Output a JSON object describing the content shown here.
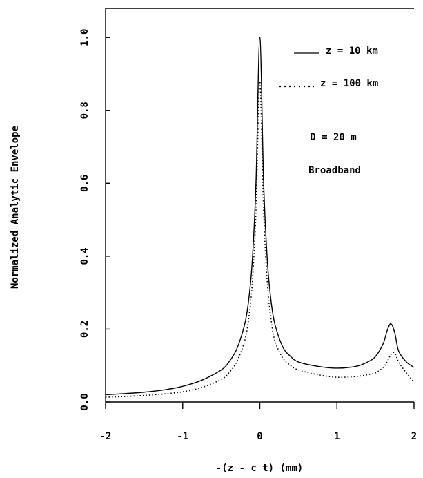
{
  "chart_data": {
    "type": "line",
    "title": "",
    "xlabel": "-(z - c t) (mm)",
    "ylabel": "Normalized Analytic Envelope",
    "xlim": [
      -2,
      2
    ],
    "ylim": [
      0,
      1.08
    ],
    "xticks": [
      -2,
      -1,
      0,
      1,
      2
    ],
    "xtick_labels": [
      "-2",
      "-1",
      "0",
      "1",
      "2"
    ],
    "yticks": [
      0,
      0.2,
      0.4,
      0.6,
      0.8,
      1.0
    ],
    "ytick_labels": [
      "0.0",
      "0.2",
      "0.4",
      "0.6",
      "0.8",
      "1.0"
    ],
    "grid": false,
    "legend_position": "top-right",
    "series": [
      {
        "name": "z = 10 km",
        "style": "solid",
        "color": "#000000",
        "x": [
          -2,
          -1.75,
          -1.5,
          -1.25,
          -1,
          -0.75,
          -0.5,
          -0.4,
          -0.3,
          -0.2,
          -0.15,
          -0.1,
          -0.05,
          0,
          0.05,
          0.1,
          0.15,
          0.2,
          0.3,
          0.4,
          0.5,
          0.75,
          1,
          1.25,
          1.4,
          1.5,
          1.6,
          1.65,
          1.7,
          1.75,
          1.8,
          1.9,
          2
        ],
        "y": [
          0.02,
          0.023,
          0.027,
          0.033,
          0.043,
          0.06,
          0.088,
          0.11,
          0.145,
          0.21,
          0.27,
          0.38,
          0.6,
          1.0,
          0.6,
          0.38,
          0.27,
          0.21,
          0.15,
          0.125,
          0.11,
          0.098,
          0.093,
          0.098,
          0.11,
          0.125,
          0.16,
          0.195,
          0.215,
          0.19,
          0.14,
          0.11,
          0.095
        ]
      },
      {
        "name": "z = 100 km",
        "style": "dotted",
        "color": "#000000",
        "x": [
          -2,
          -1.75,
          -1.5,
          -1.25,
          -1,
          -0.75,
          -0.5,
          -0.4,
          -0.3,
          -0.2,
          -0.15,
          -0.1,
          -0.05,
          0,
          0.05,
          0.1,
          0.15,
          0.2,
          0.3,
          0.4,
          0.5,
          0.75,
          1,
          1.25,
          1.4,
          1.5,
          1.6,
          1.65,
          1.7,
          1.75,
          1.8,
          1.9,
          2
        ],
        "y": [
          0.013,
          0.015,
          0.018,
          0.022,
          0.028,
          0.04,
          0.062,
          0.08,
          0.11,
          0.165,
          0.22,
          0.32,
          0.52,
          0.88,
          0.52,
          0.32,
          0.22,
          0.165,
          0.12,
          0.1,
          0.088,
          0.075,
          0.068,
          0.07,
          0.075,
          0.08,
          0.095,
          0.11,
          0.13,
          0.135,
          0.11,
          0.08,
          0.055
        ]
      }
    ],
    "annotations": [
      {
        "text": "D = 20 m",
        "x": 1.0,
        "y": 0.74
      },
      {
        "text": "Broadband",
        "x": 1.0,
        "y": 0.65
      }
    ]
  }
}
